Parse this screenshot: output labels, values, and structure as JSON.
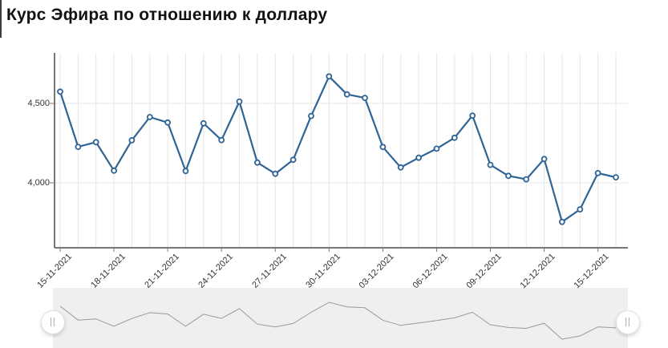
{
  "title": "Курс Эфира по отношению к доллару",
  "chart_data": {
    "type": "line",
    "title": "Курс Эфира по отношению к доллару",
    "x": [
      "15-11-2021",
      "16-11-2021",
      "17-11-2021",
      "18-11-2021",
      "19-11-2021",
      "20-11-2021",
      "21-11-2021",
      "22-11-2021",
      "23-11-2021",
      "24-11-2021",
      "25-11-2021",
      "26-11-2021",
      "27-11-2021",
      "28-11-2021",
      "29-11-2021",
      "30-11-2021",
      "01-12-2021",
      "02-12-2021",
      "03-12-2021",
      "04-12-2021",
      "05-12-2021",
      "06-12-2021",
      "07-12-2021",
      "08-12-2021",
      "09-12-2021",
      "10-12-2021",
      "11-12-2021",
      "12-12-2021",
      "13-12-2021",
      "14-12-2021",
      "15-12-2021",
      "16-12-2021"
    ],
    "values": [
      4574,
      4227,
      4256,
      4077,
      4268,
      4414,
      4380,
      4074,
      4375,
      4269,
      4512,
      4128,
      4057,
      4145,
      4421,
      4670,
      4557,
      4535,
      4226,
      4097,
      4158,
      4215,
      4284,
      4423,
      4113,
      4044,
      4022,
      4150,
      3754,
      3833,
      4061,
      4035
    ],
    "xtick_labels": [
      "15-11-2021",
      "18-11-2021",
      "21-11-2021",
      "24-11-2021",
      "27-11-2021",
      "30-11-2021",
      "03-12-2021",
      "06-12-2021",
      "09-12-2021",
      "12-12-2021",
      "15-12-2021"
    ],
    "xtick_every": 3,
    "yticks": [
      4500,
      4000
    ],
    "ytick_labels": [
      "4,500",
      "4,000"
    ],
    "ylim": [
      3590,
      4820
    ],
    "xlabel": "",
    "ylabel": "",
    "grid": true,
    "legend": "none",
    "marker": "circle"
  },
  "navigator": {
    "handle_glyph": "||"
  },
  "colors": {
    "line": "#2f6496",
    "marker_fill": "#ffffff",
    "grid": "#e6e6e6",
    "axis": "#4a4a4a",
    "tick": "#777777",
    "label": "#333333",
    "navigator_bg": "#f0efee",
    "navigator_line": "#9a9a9a"
  }
}
